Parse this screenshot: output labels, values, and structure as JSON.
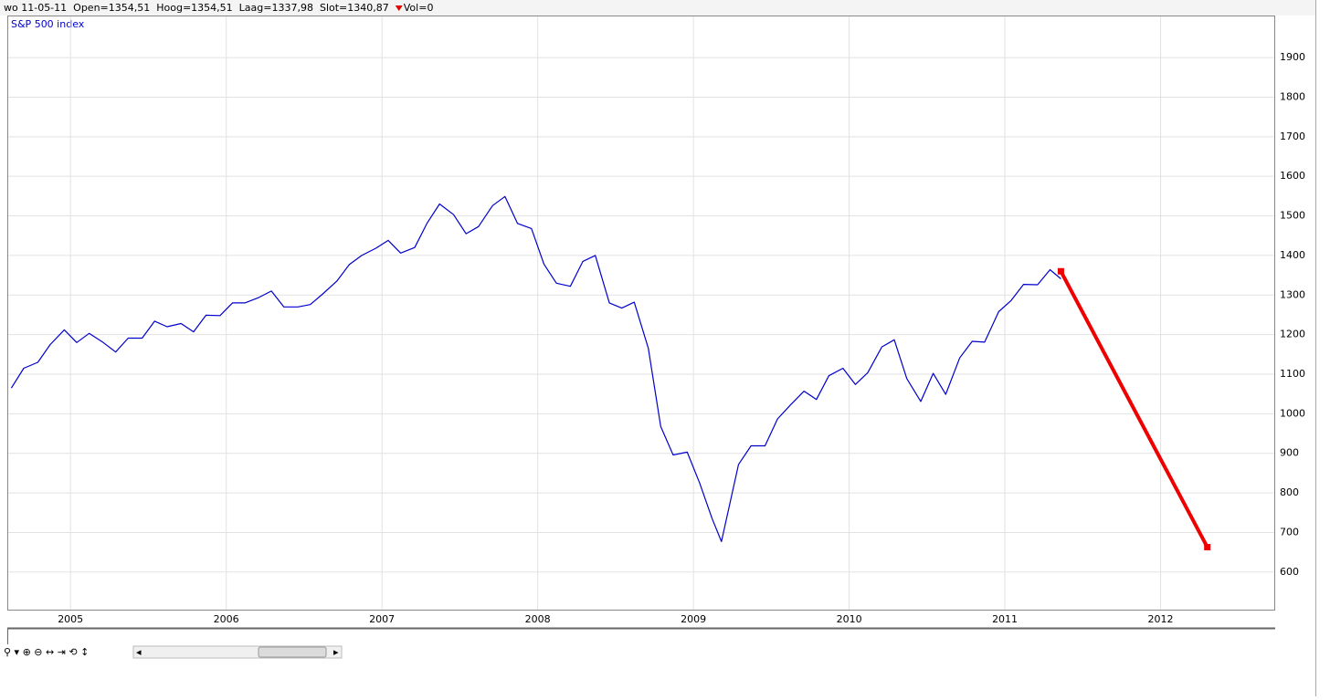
{
  "header": {
    "items": [
      "wo 11-05-11",
      "Open=1354,51",
      "Hoog=1354,51",
      "Laag=1337,98",
      "Slot=1340,87"
    ],
    "volume": "Vol=0"
  },
  "chart_data": {
    "type": "line",
    "label": "S&P 500 index",
    "xlim": [
      2004.6,
      2012.73
    ],
    "xticks": [
      2005,
      2006,
      2007,
      2008,
      2009,
      2010,
      2011,
      2012
    ],
    "ylim": [
      505,
      2004
    ],
    "yticks": [
      600,
      700,
      800,
      900,
      1000,
      1100,
      1200,
      1300,
      1400,
      1500,
      1600,
      1700,
      1800,
      1900
    ],
    "grid": true,
    "y_axis_side": "right",
    "series": [
      {
        "name": "S&P 500 index",
        "color": "#0000cc",
        "x": [
          2004.62,
          2004.7,
          2004.79,
          2004.87,
          2004.96,
          2005.04,
          2005.12,
          2005.21,
          2005.29,
          2005.37,
          2005.46,
          2005.54,
          2005.62,
          2005.71,
          2005.79,
          2005.87,
          2005.96,
          2006.04,
          2006.12,
          2006.21,
          2006.29,
          2006.37,
          2006.46,
          2006.54,
          2006.62,
          2006.71,
          2006.79,
          2006.87,
          2006.96,
          2007.04,
          2007.12,
          2007.21,
          2007.29,
          2007.37,
          2007.46,
          2007.54,
          2007.62,
          2007.71,
          2007.79,
          2007.87,
          2007.96,
          2008.04,
          2008.12,
          2008.21,
          2008.29,
          2008.37,
          2008.46,
          2008.54,
          2008.62,
          2008.71,
          2008.79,
          2008.87,
          2008.96,
          2009.04,
          2009.12,
          2009.18,
          2009.29,
          2009.37,
          2009.46,
          2009.54,
          2009.62,
          2009.71,
          2009.79,
          2009.87,
          2009.96,
          2010.04,
          2010.12,
          2010.21,
          2010.29,
          2010.37,
          2010.46,
          2010.54,
          2010.62,
          2010.71,
          2010.79,
          2010.87,
          2010.96,
          2011.04,
          2011.12,
          2011.21,
          2011.29,
          2011.36
        ],
        "values": [
          1065,
          1115,
          1130,
          1175,
          1212,
          1180,
          1203,
          1180,
          1156,
          1191,
          1191,
          1234,
          1220,
          1228,
          1207,
          1249,
          1248,
          1280,
          1280,
          1294,
          1310,
          1270,
          1270,
          1276,
          1303,
          1335,
          1377,
          1400,
          1418,
          1438,
          1406,
          1420,
          1482,
          1530,
          1503,
          1455,
          1473,
          1526,
          1549,
          1481,
          1468,
          1378,
          1330,
          1322,
          1385,
          1400,
          1280,
          1267,
          1282,
          1166,
          968,
          896,
          903,
          825,
          735,
          677,
          872,
          919,
          919,
          987,
          1021,
          1057,
          1036,
          1096,
          1115,
          1074,
          1104,
          1169,
          1187,
          1089,
          1031,
          1102,
          1049,
          1141,
          1183,
          1181,
          1258,
          1286,
          1327,
          1326,
          1364,
          1341
        ]
      },
      {
        "color": "#ee0000",
        "x": [
          2011.36,
          2012.3
        ],
        "values": [
          1360,
          663
        ]
      }
    ]
  }
}
